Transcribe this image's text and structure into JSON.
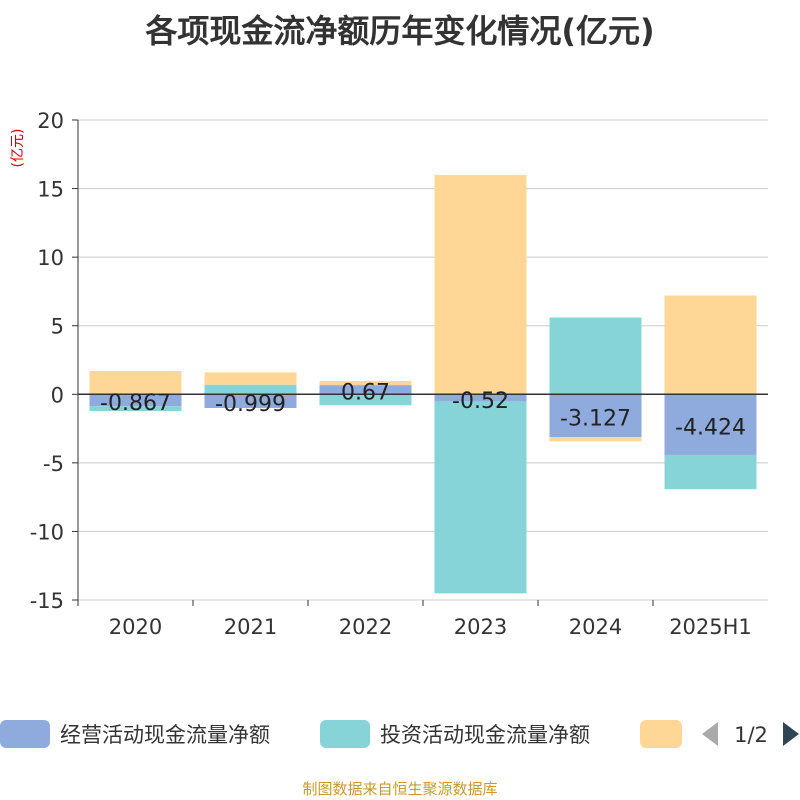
{
  "title": "各项现金流净额历年变化情况(亿元)",
  "footer": "制图数据来自恒生聚源数据库",
  "colors": {
    "operating": "#8faadc",
    "investing": "#86d4d8",
    "financing": "#fed797",
    "axis": "#333333",
    "grid": "#cccccc",
    "unit": "#cc0000",
    "footer": "#c99a2a",
    "pager_active": "#2f4554",
    "pager_inactive": "#aaaaaa"
  },
  "chart_data": {
    "type": "bar",
    "stacked": true,
    "ylabel": "(亿元)",
    "ylim": [
      -15,
      20
    ],
    "yticks": [
      "20",
      "15",
      "10",
      "5",
      "0",
      "-5",
      "-10",
      "-15"
    ],
    "grid": true,
    "categories": [
      "2020",
      "2021",
      "2022",
      "2023",
      "2024",
      "2025H1"
    ],
    "series": [
      {
        "name": "经营活动现金流量净额",
        "values": [
          -0.867,
          -0.999,
          0.67,
          -0.52,
          -3.127,
          -4.424
        ],
        "labels": [
          "-0.867",
          "-0.999",
          "0.67",
          "-0.52",
          "-3.127",
          "-4.424"
        ]
      },
      {
        "name": "投资活动现金流量净额",
        "values": [
          -0.35,
          0.7,
          -0.8,
          -14.0,
          5.6,
          -2.5
        ]
      },
      {
        "name": "",
        "values": [
          1.7,
          0.9,
          0.3,
          16.0,
          -0.3,
          7.2
        ]
      }
    ],
    "legend": {
      "position": "bottom",
      "page": "1/2"
    }
  }
}
